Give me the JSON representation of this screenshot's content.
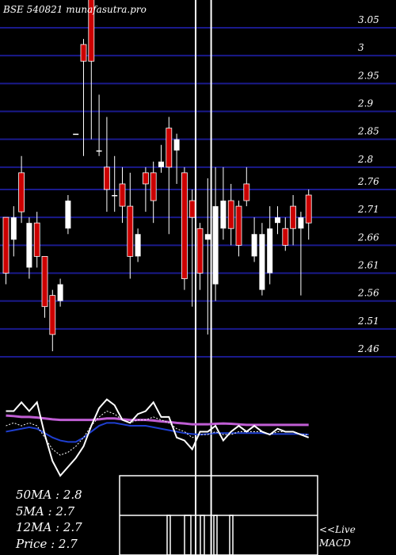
{
  "chart_data": {
    "type": "candlestick",
    "title": "BSE 540821 munafasutra.pro",
    "price_axis": {
      "ticks": [
        3.05,
        3,
        2.95,
        2.9,
        2.85,
        2.8,
        2.76,
        2.71,
        2.66,
        2.61,
        2.56,
        2.51,
        2.46
      ],
      "range": [
        2.39,
        3.12
      ]
    },
    "candles": [
      {
        "o": 2.71,
        "c": 2.61,
        "h": 2.71,
        "l": 2.59,
        "dir": "down"
      },
      {
        "o": 2.71,
        "c": 2.67,
        "h": 2.73,
        "l": 2.64,
        "dir": "up"
      },
      {
        "o": 2.72,
        "c": 2.79,
        "h": 2.82,
        "l": 2.7,
        "dir": "down"
      },
      {
        "o": 2.7,
        "c": 2.62,
        "h": 2.71,
        "l": 2.6,
        "dir": "up"
      },
      {
        "o": 2.64,
        "c": 2.7,
        "h": 2.72,
        "l": 2.62,
        "dir": "down"
      },
      {
        "o": 2.64,
        "c": 2.55,
        "h": 2.64,
        "l": 2.53,
        "dir": "down"
      },
      {
        "o": 2.57,
        "c": 2.5,
        "h": 2.58,
        "l": 2.47,
        "dir": "down"
      },
      {
        "o": 2.56,
        "c": 2.59,
        "h": 2.6,
        "l": 2.55,
        "dir": "up"
      },
      {
        "o": 2.69,
        "c": 2.74,
        "h": 2.75,
        "l": 2.68,
        "dir": "up"
      },
      {
        "o": 2.86,
        "c": 2.86,
        "h": 2.86,
        "l": 2.86,
        "dir": "up"
      },
      {
        "o": 2.99,
        "c": 3.02,
        "h": 3.03,
        "l": 2.82,
        "dir": "down"
      },
      {
        "o": 3.15,
        "c": 2.99,
        "h": 3.15,
        "l": 2.85,
        "dir": "down"
      },
      {
        "o": 2.83,
        "c": 2.83,
        "h": 2.93,
        "l": 2.82,
        "dir": "up"
      },
      {
        "o": 2.8,
        "c": 2.76,
        "h": 2.89,
        "l": 2.72,
        "dir": "down"
      },
      {
        "o": 2.75,
        "c": 2.75,
        "h": 2.82,
        "l": 2.72,
        "dir": "up"
      },
      {
        "o": 2.77,
        "c": 2.73,
        "h": 2.8,
        "l": 2.7,
        "dir": "down"
      },
      {
        "o": 2.73,
        "c": 2.64,
        "h": 2.79,
        "l": 2.6,
        "dir": "down"
      },
      {
        "o": 2.64,
        "c": 2.68,
        "h": 2.69,
        "l": 2.63,
        "dir": "up"
      },
      {
        "o": 2.79,
        "c": 2.77,
        "h": 2.8,
        "l": 2.72,
        "dir": "down"
      },
      {
        "o": 2.79,
        "c": 2.74,
        "h": 2.81,
        "l": 2.7,
        "dir": "down"
      },
      {
        "o": 2.8,
        "c": 2.81,
        "h": 2.84,
        "l": 2.79,
        "dir": "up"
      },
      {
        "o": 2.87,
        "c": 2.8,
        "h": 2.89,
        "l": 2.68,
        "dir": "down"
      },
      {
        "o": 2.85,
        "c": 2.83,
        "h": 2.86,
        "l": 2.77,
        "dir": "up"
      },
      {
        "o": 2.79,
        "c": 2.6,
        "h": 2.8,
        "l": 2.58,
        "dir": "down"
      },
      {
        "o": 2.74,
        "c": 2.71,
        "h": 2.76,
        "l": 2.55,
        "dir": "down"
      },
      {
        "o": 2.69,
        "c": 2.61,
        "h": 2.7,
        "l": 2.58,
        "dir": "down"
      },
      {
        "o": 2.68,
        "c": 2.67,
        "h": 2.78,
        "l": 2.5,
        "dir": "up"
      },
      {
        "o": 2.73,
        "c": 2.59,
        "h": 2.8,
        "l": 2.56,
        "dir": "up"
      },
      {
        "o": 2.74,
        "c": 2.69,
        "h": 2.8,
        "l": 2.67,
        "dir": "up"
      },
      {
        "o": 2.74,
        "c": 2.69,
        "h": 2.77,
        "l": 2.66,
        "dir": "down"
      },
      {
        "o": 2.73,
        "c": 2.66,
        "h": 2.74,
        "l": 2.64,
        "dir": "down"
      },
      {
        "o": 2.77,
        "c": 2.74,
        "h": 2.8,
        "l": 2.73,
        "dir": "down"
      },
      {
        "o": 2.68,
        "c": 2.64,
        "h": 2.71,
        "l": 2.63,
        "dir": "up"
      },
      {
        "o": 2.68,
        "c": 2.58,
        "h": 2.7,
        "l": 2.57,
        "dir": "up"
      },
      {
        "o": 2.69,
        "c": 2.61,
        "h": 2.73,
        "l": 2.59,
        "dir": "up"
      },
      {
        "o": 2.7,
        "c": 2.71,
        "h": 2.73,
        "l": 2.68,
        "dir": "up"
      },
      {
        "o": 2.69,
        "c": 2.66,
        "h": 2.71,
        "l": 2.65,
        "dir": "down"
      },
      {
        "o": 2.73,
        "c": 2.69,
        "h": 2.75,
        "l": 2.66,
        "dir": "down"
      },
      {
        "o": 2.71,
        "c": 2.69,
        "h": 2.72,
        "l": 2.57,
        "dir": "up"
      },
      {
        "o": 2.75,
        "c": 2.7,
        "h": 2.76,
        "l": 2.67,
        "dir": "down"
      }
    ],
    "vertical_lines_candle_index": [
      25,
      27
    ],
    "indicator_lines": {
      "white_main": [
        2.5,
        2.5,
        2.8,
        2.5,
        2.8,
        1.7,
        0.8,
        0.3,
        0.6,
        0.9,
        1.3,
        2.0,
        2.6,
        2.9,
        2.7,
        2.2,
        2.1,
        2.4,
        2.5,
        2.8,
        2.3,
        2.3,
        1.6,
        1.5,
        1.2,
        1.8,
        1.8,
        2.0,
        1.5,
        1.8,
        2.0,
        1.8,
        2.0,
        1.8,
        1.7,
        1.9,
        1.8,
        1.8,
        1.7,
        1.6
      ],
      "white_dotted": [
        2.0,
        2.1,
        2.0,
        2.1,
        2.0,
        1.6,
        1.2,
        1.0,
        1.1,
        1.3,
        1.6,
        2.0,
        2.3,
        2.5,
        2.4,
        2.2,
        2.1,
        2.2,
        2.2,
        2.3,
        2.2,
        2.1,
        1.9,
        1.8,
        1.6,
        1.7,
        1.7,
        1.8,
        1.7,
        1.7,
        1.8,
        1.8,
        1.8,
        1.8,
        1.7,
        1.8,
        1.8,
        1.8,
        1.7,
        1.7
      ],
      "blue": [
        1.8,
        1.85,
        1.9,
        1.95,
        1.9,
        1.75,
        1.6,
        1.5,
        1.45,
        1.45,
        1.6,
        1.8,
        2.0,
        2.1,
        2.1,
        2.05,
        2.0,
        2.0,
        2.0,
        1.95,
        1.9,
        1.85,
        1.8,
        1.75,
        1.72,
        1.7,
        1.72,
        1.75,
        1.75,
        1.75,
        1.75,
        1.75,
        1.75,
        1.75,
        1.72,
        1.72,
        1.72,
        1.72,
        1.72,
        1.7
      ],
      "magenta": [
        2.35,
        2.33,
        2.3,
        2.3,
        2.28,
        2.25,
        2.22,
        2.2,
        2.2,
        2.2,
        2.2,
        2.2,
        2.22,
        2.25,
        2.25,
        2.22,
        2.2,
        2.2,
        2.2,
        2.18,
        2.15,
        2.13,
        2.1,
        2.08,
        2.05,
        2.05,
        2.05,
        2.07,
        2.08,
        2.07,
        2.05,
        2.03,
        2.03,
        2.03,
        2.03,
        2.03,
        2.03,
        2.03,
        2.03,
        2.03
      ]
    },
    "ma_labels": [
      {
        "label": "50MA : 2.8"
      },
      {
        "label": "5MA : 2.7"
      },
      {
        "label": "12MA : 2.7"
      },
      {
        "label": "Price   : 2.7"
      }
    ],
    "macd_label": "<<Live MACD",
    "colors": {
      "down_candle": "#cc0000",
      "up_candle": "#ffffff",
      "grid": "#1a1a8c",
      "blue_line": "#1f3fd1",
      "magenta_line": "#c05ed4",
      "background": "#000000"
    }
  }
}
